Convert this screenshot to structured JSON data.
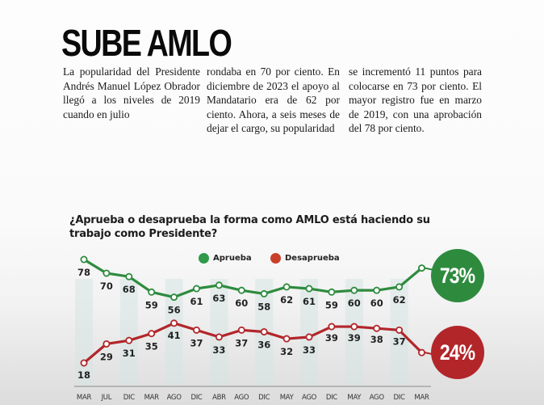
{
  "article": {
    "headline": "SUBE AMLO",
    "columns": [
      "La popularidad del Presidente Andrés Manuel López Obrador llegó a los niveles de 2019 cuando en julio",
      "rondaba en 70 por ciento. En diciembre de 2023 el apoyo al Mandatario era de 62 por ciento. Ahora, a seis meses de dejar el cargo, su popularidad",
      "se incrementó 11 puntos para colocarse en 73 por ciento. El mayor registro fue en marzo de 2019, con una aprobación del 78 por ciento."
    ]
  },
  "chart": {
    "title": "¿Aprueba o desaprueba la forma como AMLO está haciendo su trabajo como Presidente?",
    "legend": {
      "approve": "Aprueba",
      "disapprove": "Desaprueba"
    },
    "colors": {
      "approve": "#2e8b3e",
      "disapprove": "#b2262a",
      "band": "#d6e6e4"
    },
    "badges": {
      "approve": "73%",
      "disapprove": "24%"
    }
  },
  "chart_data": {
    "type": "line",
    "title": "¿Aprueba o desaprueba la forma como AMLO está haciendo su trabajo como Presidente?",
    "xlabel": "",
    "ylabel": "",
    "categories": [
      "MAR",
      "JUL",
      "DIC",
      "MAR",
      "AGO",
      "DIC",
      "ABR",
      "AGO",
      "DIC",
      "MAY",
      "AGO",
      "DIC",
      "MAY",
      "AGO",
      "DIC",
      "MAR"
    ],
    "series": [
      {
        "name": "Aprueba",
        "color": "#2e8b3e",
        "values": [
          78,
          70,
          68,
          59,
          56,
          61,
          63,
          60,
          58,
          62,
          61,
          59,
          60,
          60,
          62,
          73
        ]
      },
      {
        "name": "Desaprueba",
        "color": "#b2262a",
        "values": [
          18,
          29,
          31,
          35,
          41,
          37,
          33,
          37,
          36,
          32,
          33,
          39,
          39,
          38,
          37,
          24
        ]
      }
    ],
    "annotations": [
      {
        "series": "Aprueba",
        "label": "73%",
        "position": "last"
      },
      {
        "series": "Desaprueba",
        "label": "24%",
        "position": "last"
      }
    ],
    "legend_position": "top",
    "grid": false
  }
}
